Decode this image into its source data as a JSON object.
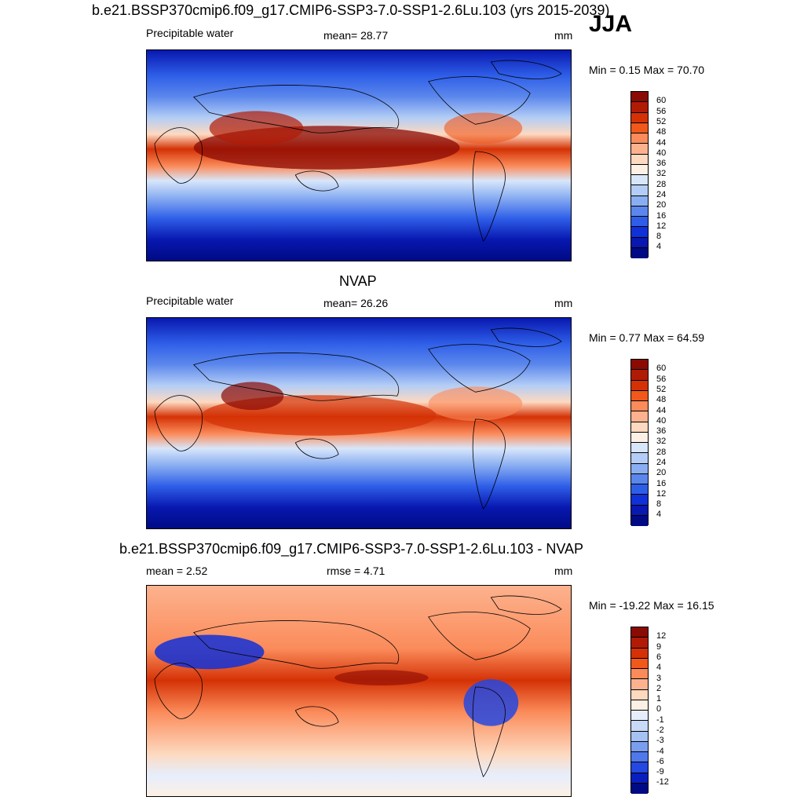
{
  "main_title": "b.e21.BSSP370cmip6.f09_g17.CMIP6-SSP3-7.0-SSP1-2.6Lu.103 (yrs 2015-2039)",
  "season": "JJA",
  "panels": [
    {
      "title": "",
      "left_label": "Precipitable water",
      "center_label": "mean=  28.77",
      "units": "mm",
      "minmax": "Min =   0.15 Max =  70.70",
      "colorbar_labels": [
        "60",
        "56",
        "52",
        "48",
        "44",
        "40",
        "36",
        "32",
        "28",
        "24",
        "20",
        "16",
        "12",
        "8",
        "4"
      ]
    },
    {
      "title": "NVAP",
      "left_label": "Precipitable water",
      "center_label": "mean=  26.26",
      "units": "mm",
      "minmax": "Min =   0.77 Max =  64.59",
      "colorbar_labels": [
        "60",
        "56",
        "52",
        "48",
        "44",
        "40",
        "36",
        "32",
        "28",
        "24",
        "20",
        "16",
        "12",
        "8",
        "4"
      ]
    },
    {
      "title": "b.e21.BSSP370cmip6.f09_g17.CMIP6-SSP3-7.0-SSP1-2.6Lu.103 - NVAP",
      "left_label": "mean =   2.52",
      "center_label": "rmse =   4.71",
      "units": "mm",
      "minmax": "Min = -19.22 Max =  16.15",
      "colorbar_labels": [
        "12",
        "9",
        "6",
        "4",
        "3",
        "2",
        "1",
        "0",
        "-1",
        "-2",
        "-3",
        "-4",
        "-6",
        "-9",
        "-12"
      ]
    }
  ],
  "colors": {
    "abs_scale": [
      "#8a0a04",
      "#b01b06",
      "#d43206",
      "#f0581c",
      "#fb8b5a",
      "#fcb28e",
      "#fdd9c0",
      "#fdf0e4",
      "#d8e6fa",
      "#b3cdf6",
      "#8aaef2",
      "#5b87ec",
      "#2e5ee8",
      "#1030d8",
      "#0818b0",
      "#000a84"
    ],
    "diff_scale": [
      "#8a0a04",
      "#b01b06",
      "#d43206",
      "#f0581c",
      "#fb8b5a",
      "#fcb28e",
      "#fdd9c0",
      "#fdf0e4",
      "#e6eefc",
      "#c8daf8",
      "#a6c2f4",
      "#7a9eef",
      "#4f78ea",
      "#2448e0",
      "#0a1ec0",
      "#000a84"
    ]
  }
}
